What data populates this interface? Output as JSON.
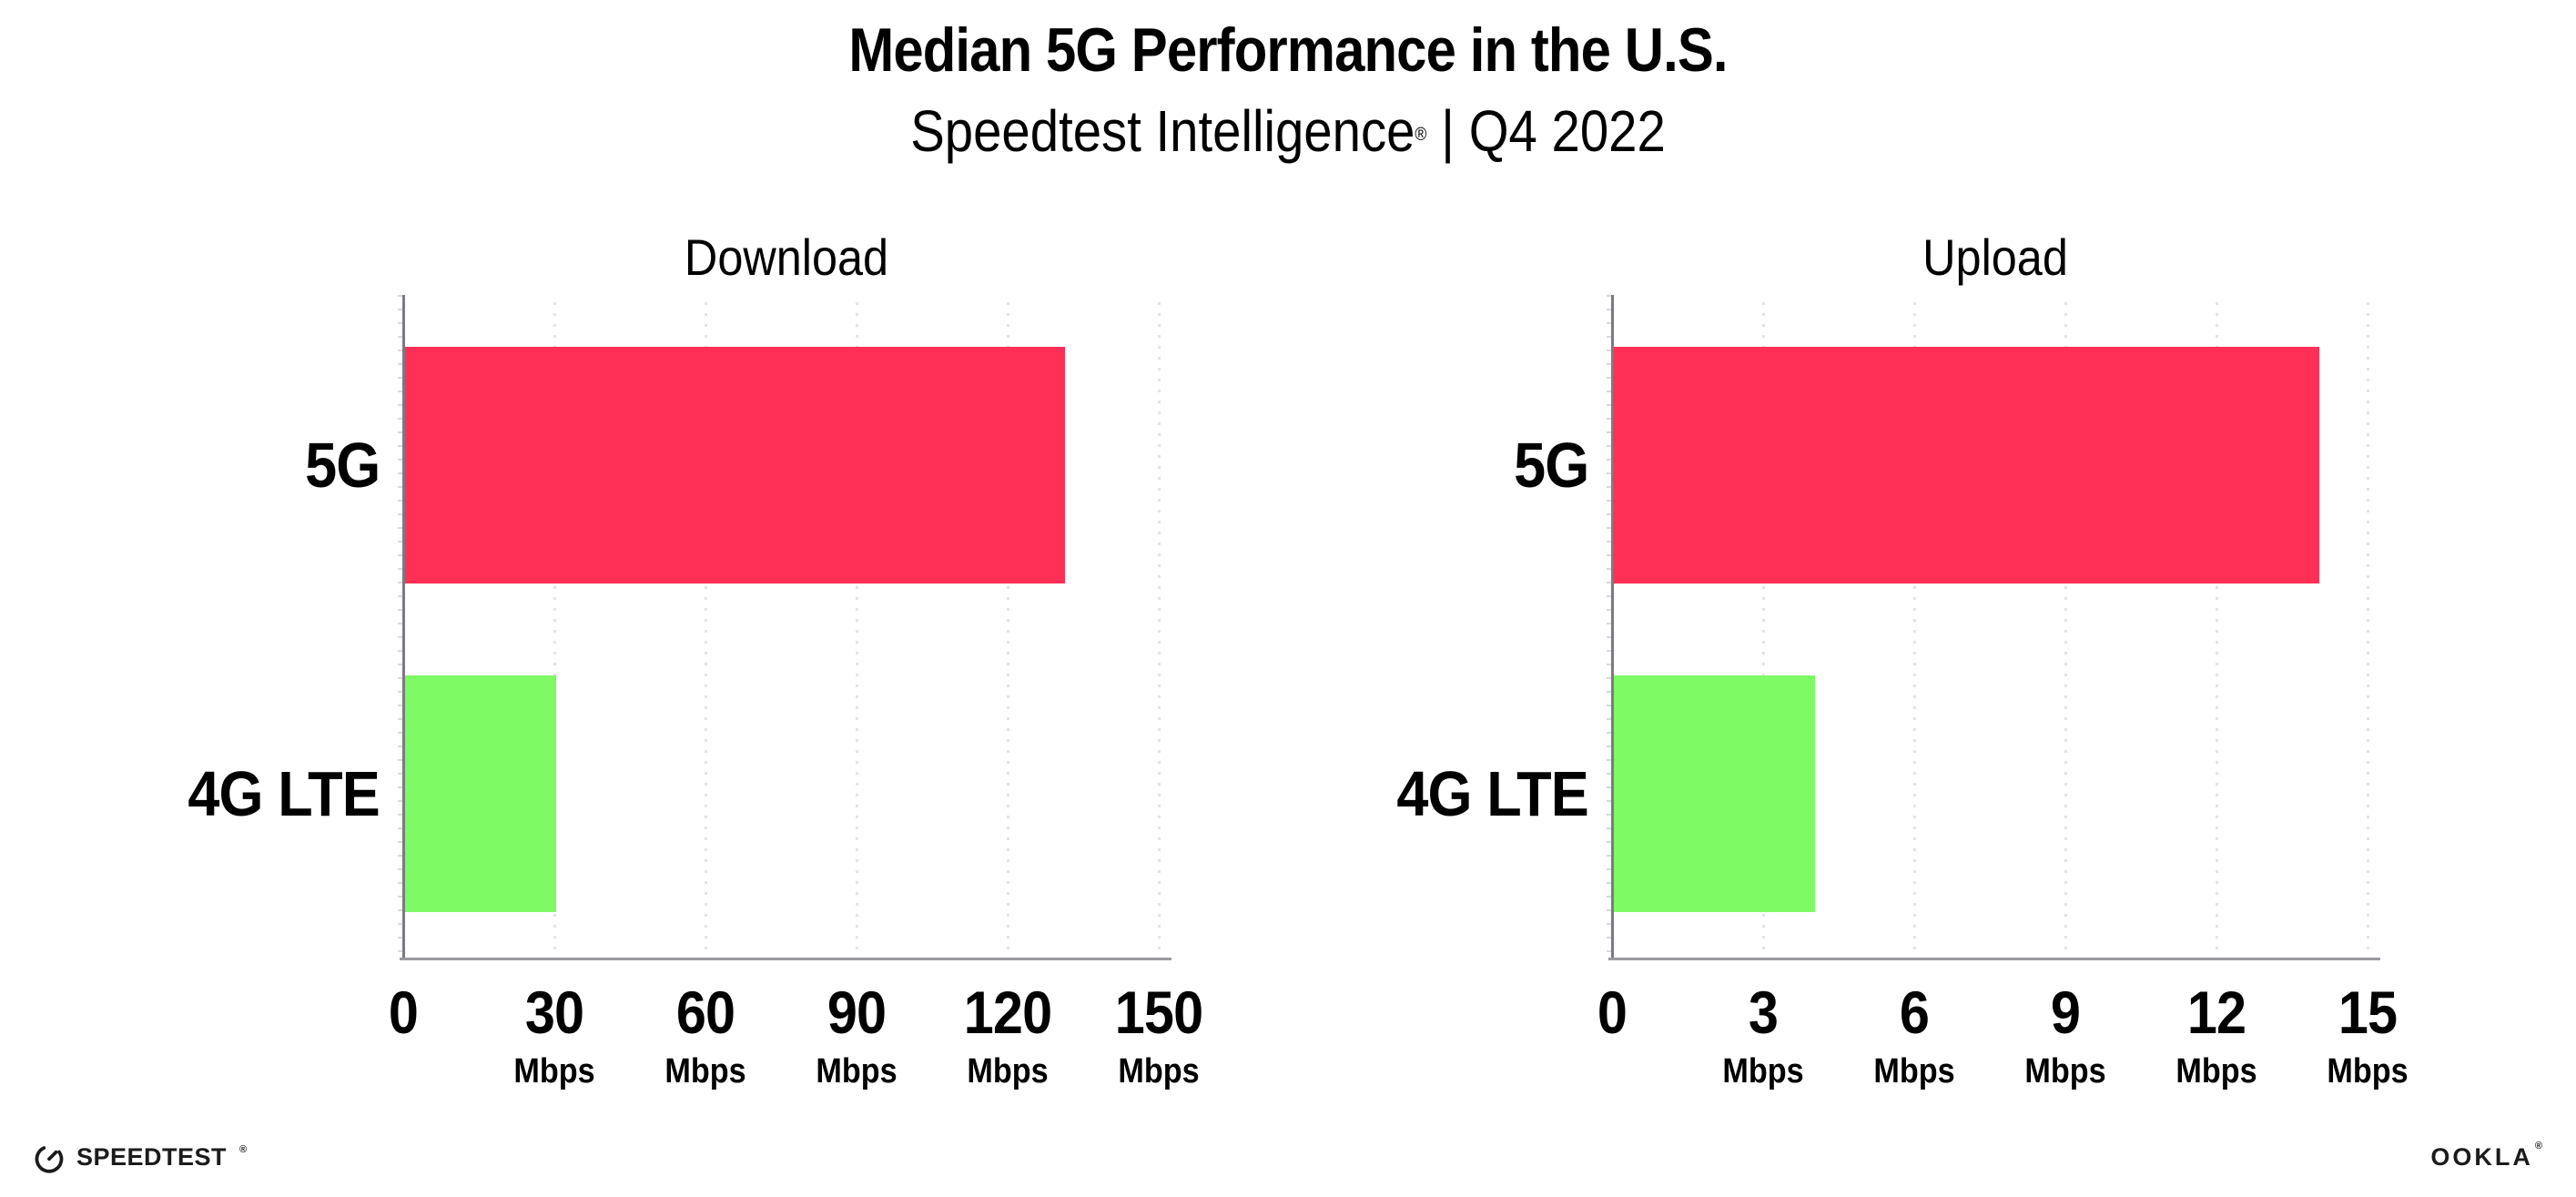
{
  "header": {
    "title": "Median 5G Performance in the U.S.",
    "subtitle_brand": "Speedtest Intelligence",
    "subtitle_reg": "®",
    "subtitle_separator": "|",
    "subtitle_period": "Q4 2022"
  },
  "chart_data": [
    {
      "type": "bar",
      "orientation": "horizontal",
      "title": "Download",
      "categories": [
        "5G",
        "4G LTE"
      ],
      "values": [
        131,
        30
      ],
      "unit": "Mbps",
      "xlim": [
        0,
        150
      ],
      "xticks": [
        0,
        30,
        60,
        90,
        120,
        150
      ],
      "tick_unit_label": "Mbps",
      "bar_colors": [
        "#FF2F55",
        "#7DFA64"
      ],
      "gridlines": "dotted-vertical",
      "legend": "none"
    },
    {
      "type": "bar",
      "orientation": "horizontal",
      "title": "Upload",
      "categories": [
        "5G",
        "4G LTE"
      ],
      "values": [
        14,
        4
      ],
      "unit": "Mbps",
      "xlim": [
        0,
        15
      ],
      "xticks": [
        0,
        3,
        6,
        9,
        12,
        15
      ],
      "tick_unit_label": "Mbps",
      "bar_colors": [
        "#FF2F55",
        "#7DFA64"
      ],
      "gridlines": "dotted-vertical",
      "legend": "none"
    }
  ],
  "footer": {
    "speedtest_label": "SPEEDTEST",
    "speedtest_reg": "®",
    "speedtest_icon": "speedometer-gauge-icon",
    "ookla_label": "OOKLA",
    "ookla_reg": "®"
  },
  "colors": {
    "background": "#FFFFFF",
    "bar_5g": "#FF2F55",
    "bar_4g_lte": "#7DFA64",
    "x_axis": "#9A9AA0",
    "y_axis": "#7A7A80",
    "gridline": "#E3E3E9",
    "text": "#000000",
    "logo_text": "#1B1B1B"
  }
}
